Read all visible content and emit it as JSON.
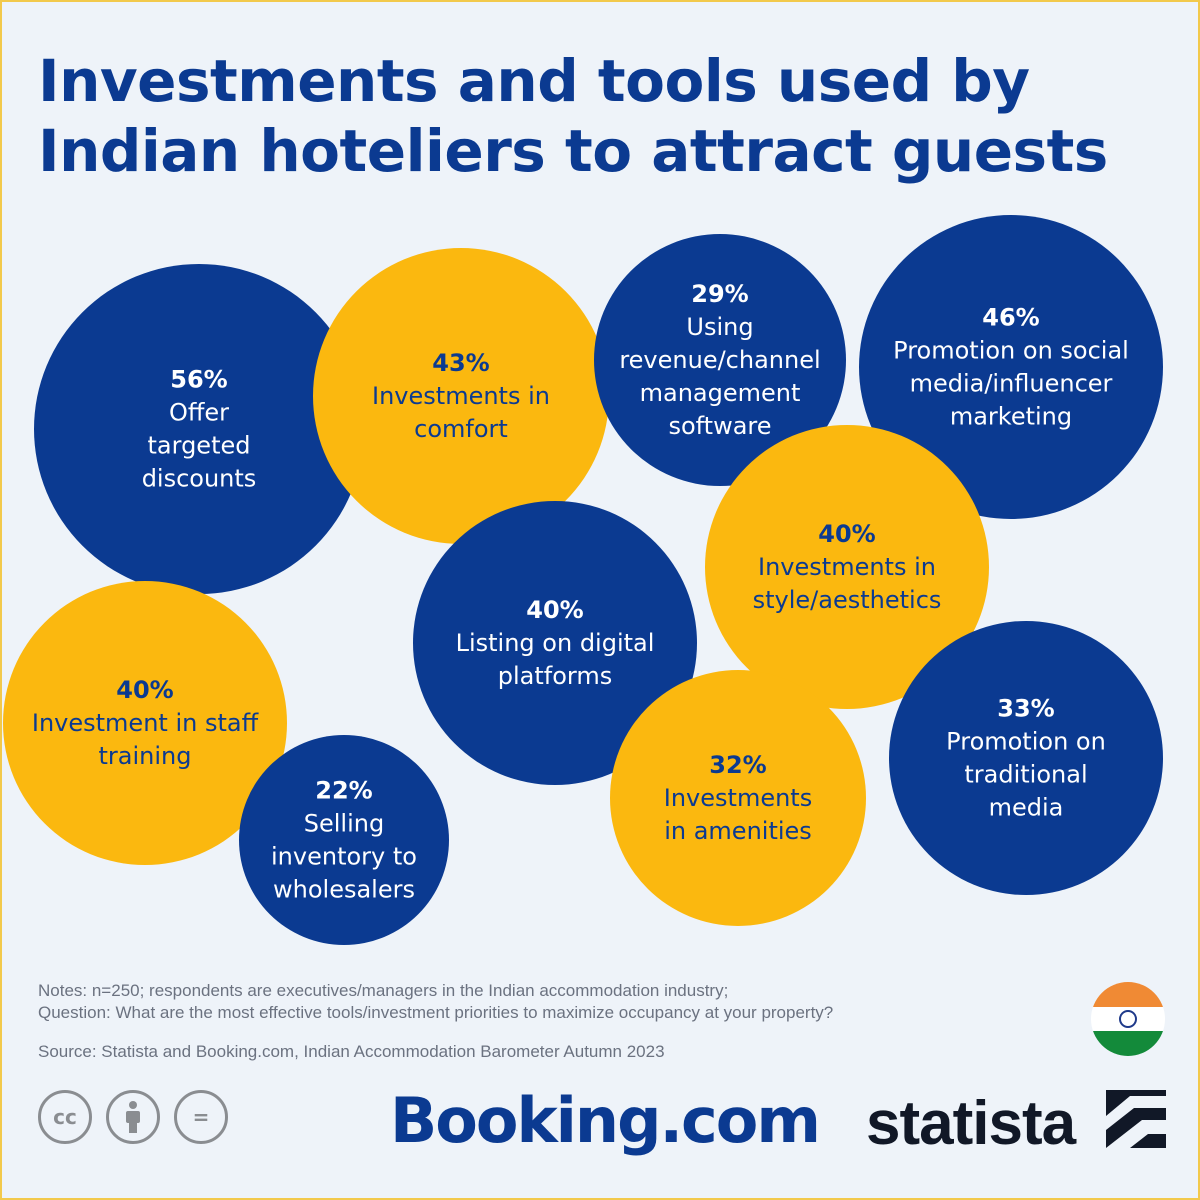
{
  "title": "Investments and tools used by Indian hoteliers to attract guests",
  "chart_data": {
    "type": "bubble",
    "items": [
      {
        "value": "56%",
        "label": [
          "Offer",
          "targeted",
          "discounts"
        ],
        "color": "#0b3a91",
        "text_color": "#ffffff",
        "value_color": "#ffffff"
      },
      {
        "value": "43%",
        "label": [
          "Investments in",
          "comfort"
        ],
        "color": "#fbb80f",
        "text_color": "#0b3a91",
        "value_color": "#0b3a91"
      },
      {
        "value": "29%",
        "label": [
          "Using",
          "revenue/channel",
          "management",
          "software"
        ],
        "color": "#0b3a91",
        "text_color": "#ffffff",
        "value_color": "#ffffff"
      },
      {
        "value": "46%",
        "label": [
          "Promotion on social",
          "media/influencer",
          "marketing"
        ],
        "color": "#0b3a91",
        "text_color": "#ffffff",
        "value_color": "#ffffff"
      },
      {
        "value": "40%",
        "label": [
          "Investments in",
          "style/aesthetics"
        ],
        "color": "#fbb80f",
        "text_color": "#0b3a91",
        "value_color": "#0b3a91"
      },
      {
        "value": "40%",
        "label": [
          "Listing on digital",
          "platforms"
        ],
        "color": "#0b3a91",
        "text_color": "#ffffff",
        "value_color": "#ffffff"
      },
      {
        "value": "40%",
        "label": [
          "Investment in staff",
          "training"
        ],
        "color": "#fbb80f",
        "text_color": "#0b3a91",
        "value_color": "#0b3a91"
      },
      {
        "value": "22%",
        "label": [
          "Selling",
          "inventory to",
          "wholesalers"
        ],
        "color": "#0b3a91",
        "text_color": "#ffffff",
        "value_color": "#ffffff"
      },
      {
        "value": "32%",
        "label": [
          "Investments",
          "in amenities"
        ],
        "color": "#fbb80f",
        "text_color": "#0b3a91",
        "value_color": "#0b3a91"
      },
      {
        "value": "33%",
        "label": [
          "Promotion on",
          "traditional",
          "media"
        ],
        "color": "#0b3a91",
        "text_color": "#ffffff",
        "value_color": "#ffffff"
      }
    ]
  },
  "notes": {
    "line1": "Notes: n=250; respondents are executives/managers in the Indian accommodation industry;",
    "line2": "Question: What are the most effective tools/investment priorities to maximize occupancy at your property?"
  },
  "source": "Source: Statista and Booking.com, Indian Accommodation Barometer Autumn 2023",
  "logos": {
    "booking": "Booking.com",
    "statista": "statista",
    "cc": "cc",
    "equals": "="
  },
  "icons": [
    "cc-icon",
    "attribution-person-icon",
    "no-derivatives-icon",
    "india-flag-icon",
    "statista-mark-icon"
  ]
}
